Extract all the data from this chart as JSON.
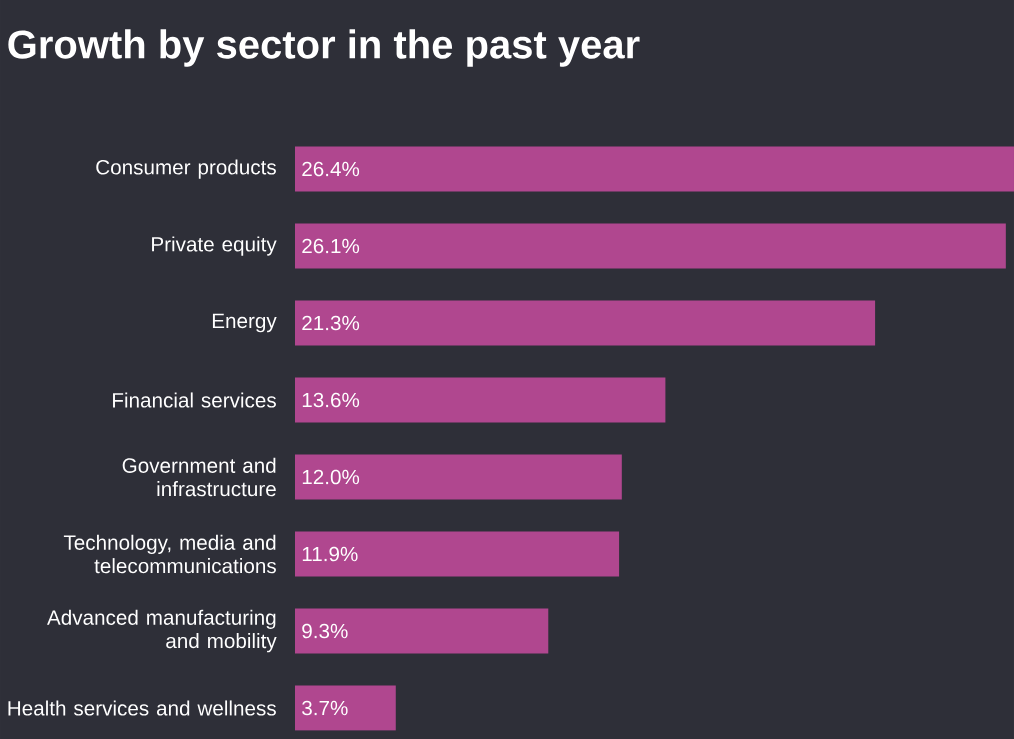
{
  "chart_data": {
    "type": "bar",
    "orientation": "horizontal",
    "title": "Growth by sector in the past year",
    "categories": [
      "Consumer products",
      "Private equity",
      "Energy",
      "Financial services",
      "Government and infrastructure",
      "Technology, media and telecommunications",
      "Advanced manufacturing and mobility",
      "Health services and wellness"
    ],
    "values": [
      26.4,
      26.1,
      21.3,
      13.6,
      12.0,
      11.9,
      9.3,
      3.7
    ],
    "value_labels": [
      "26.4%",
      "26.1%",
      "21.3%",
      "13.6%",
      "12.0%",
      "11.9%",
      "9.3%",
      "3.7%"
    ],
    "color": "#b0478f"
  }
}
